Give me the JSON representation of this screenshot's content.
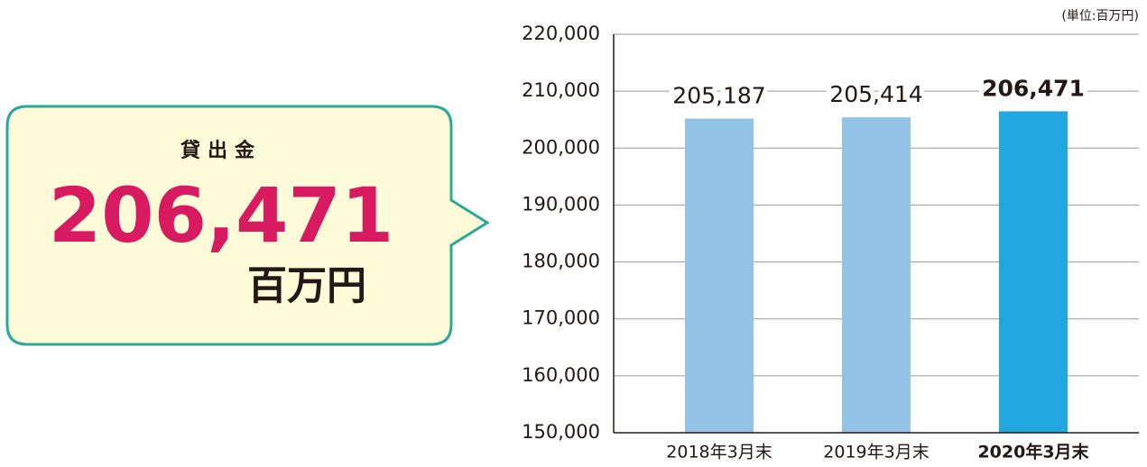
{
  "callout": {
    "label": "貸出金",
    "value": "206,471",
    "unit": "百万円"
  },
  "chart_data": {
    "type": "bar",
    "unit_note": "(単位:百万円)",
    "categories": [
      "2018年3月末",
      "2019年3月末",
      "2020年3月末"
    ],
    "values": [
      205187,
      205414,
      206471
    ],
    "value_labels": [
      "205,187",
      "205,414",
      "206,471"
    ],
    "colors": [
      "#93c4e8",
      "#93c4e8",
      "#22a8e0"
    ],
    "ylim": [
      150000,
      220000
    ],
    "yticks": [
      {
        "value": 150000,
        "label": "150,000"
      },
      {
        "value": 160000,
        "label": "160,000"
      },
      {
        "value": 170000,
        "label": "170,000"
      },
      {
        "value": 180000,
        "label": "180,000"
      },
      {
        "value": 190000,
        "label": "190,000"
      },
      {
        "value": 200000,
        "label": "200,000"
      },
      {
        "value": 210000,
        "label": "210,000"
      },
      {
        "value": 220000,
        "label": "220,000"
      }
    ],
    "grid": true
  }
}
